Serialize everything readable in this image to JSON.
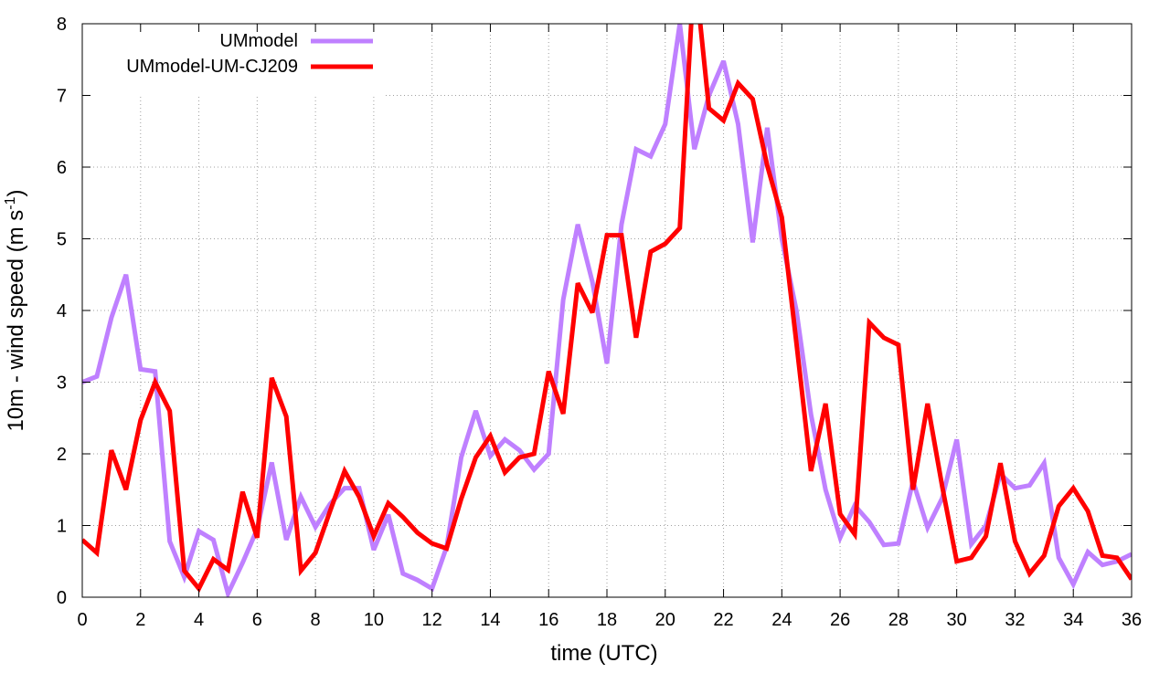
{
  "chart_data": {
    "type": "line",
    "xlabel": "time (UTC)",
    "ylabel_main": "10m - wind speed  (m s",
    "ylabel_sup": "-1",
    "ylabel_close": ")",
    "xlim": [
      0,
      36
    ],
    "ylim": [
      0,
      8
    ],
    "x_ticks": [
      0,
      2,
      4,
      6,
      8,
      10,
      12,
      14,
      16,
      18,
      20,
      22,
      24,
      26,
      28,
      30,
      32,
      34,
      36
    ],
    "y_ticks": [
      0,
      1,
      2,
      3,
      4,
      5,
      6,
      7,
      8
    ],
    "grid": true,
    "legend_position": "top-left",
    "x": [
      0,
      0.5,
      1,
      1.5,
      2,
      2.5,
      3,
      3.5,
      4,
      4.5,
      5,
      5.5,
      6,
      6.5,
      7,
      7.5,
      8,
      8.5,
      9,
      9.5,
      10,
      10.5,
      11,
      11.5,
      12,
      12.5,
      13,
      13.5,
      14,
      14.5,
      15,
      15.5,
      16,
      16.5,
      17,
      17.5,
      18,
      18.5,
      19,
      19.5,
      20,
      20.5,
      21,
      21.5,
      22,
      22.5,
      23,
      23.5,
      24,
      24.5,
      25,
      25.5,
      26,
      26.5,
      27,
      27.5,
      28,
      28.5,
      29,
      29.5,
      30,
      30.5,
      31,
      31.5,
      32,
      32.5,
      33,
      33.5,
      34,
      34.5,
      35,
      35.5,
      36
    ],
    "series": [
      {
        "name": "UMmodel",
        "color": "#bf80ff",
        "values": [
          3.0,
          3.08,
          3.9,
          4.5,
          3.18,
          3.15,
          0.78,
          0.28,
          0.92,
          0.8,
          0.05,
          0.48,
          0.95,
          1.88,
          0.8,
          1.4,
          0.98,
          1.3,
          1.52,
          1.52,
          0.66,
          1.15,
          0.33,
          0.24,
          0.12,
          0.7,
          1.95,
          2.6,
          1.97,
          2.2,
          2.05,
          1.78,
          2.0,
          4.15,
          5.2,
          4.4,
          3.26,
          5.2,
          6.25,
          6.15,
          6.6,
          8.0,
          6.25,
          7.0,
          7.48,
          6.6,
          4.95,
          6.55,
          5.0,
          4.0,
          2.55,
          1.5,
          0.83,
          1.28,
          1.05,
          0.73,
          0.75,
          1.62,
          0.97,
          1.38,
          2.2,
          0.74,
          1.0,
          1.72,
          1.52,
          1.56,
          1.87,
          0.55,
          0.18,
          0.63,
          0.45,
          0.5,
          0.6
        ]
      },
      {
        "name": "UMmodel-UM-CJ209",
        "color": "#ff0000",
        "values": [
          0.8,
          0.62,
          2.05,
          1.5,
          2.47,
          3.0,
          2.6,
          0.37,
          0.12,
          0.53,
          0.38,
          1.47,
          0.83,
          3.06,
          2.52,
          0.37,
          0.62,
          1.2,
          1.76,
          1.4,
          0.85,
          1.31,
          1.12,
          0.9,
          0.75,
          0.68,
          1.37,
          1.95,
          2.25,
          1.74,
          1.95,
          2.0,
          3.15,
          2.56,
          4.38,
          3.97,
          5.05,
          5.05,
          3.62,
          4.82,
          4.93,
          5.15,
          8.8,
          6.82,
          6.65,
          7.17,
          6.95,
          6.02,
          5.3,
          3.55,
          1.76,
          2.7,
          1.16,
          0.88,
          3.83,
          3.62,
          3.52,
          1.5,
          2.7,
          1.55,
          0.5,
          0.55,
          0.85,
          1.87,
          0.78,
          0.33,
          0.58,
          1.27,
          1.52,
          1.2,
          0.58,
          0.55,
          0.25
        ]
      }
    ]
  }
}
